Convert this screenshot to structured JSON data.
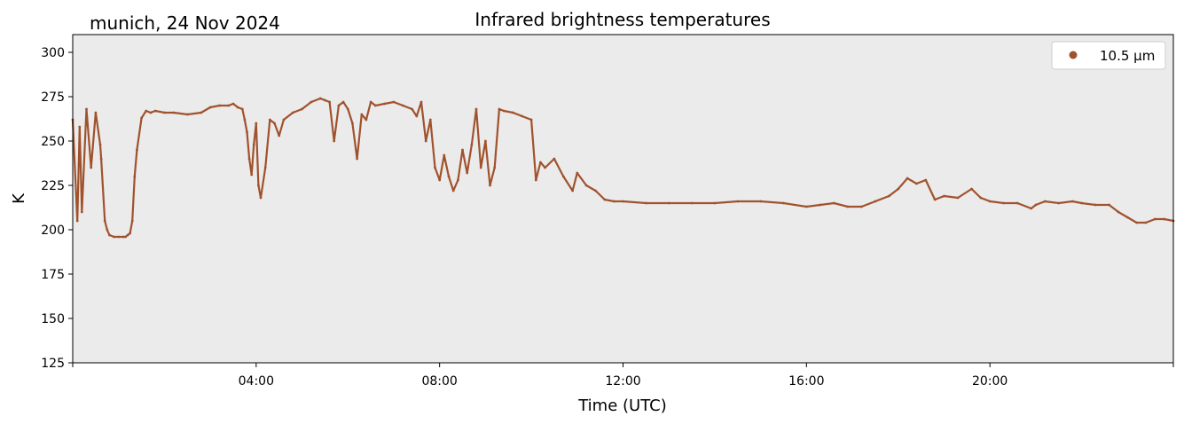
{
  "chart_data": {
    "type": "scatter",
    "title": "Infrared brightness temperatures",
    "subtitle": "munich, 24 Nov 2024",
    "xlabel": "Time (UTC)",
    "ylabel": "K",
    "xlim": [
      0,
      24
    ],
    "ylim": [
      125,
      310
    ],
    "x_ticks": [
      {
        "value": 4,
        "label": "04:00"
      },
      {
        "value": 8,
        "label": "08:00"
      },
      {
        "value": 12,
        "label": "12:00"
      },
      {
        "value": 16,
        "label": "16:00"
      },
      {
        "value": 20,
        "label": "20:00"
      }
    ],
    "y_ticks": [
      125,
      150,
      175,
      200,
      225,
      250,
      275,
      300
    ],
    "grid": false,
    "background_color": "#ebebeb",
    "legend_position": "top-right",
    "series": [
      {
        "name": "10.5 µm",
        "color": "#a0522d",
        "x_hours": [
          0.0,
          0.1,
          0.15,
          0.2,
          0.3,
          0.4,
          0.5,
          0.6,
          0.62,
          0.7,
          0.75,
          0.8,
          0.9,
          1.0,
          1.1,
          1.15,
          1.2,
          1.25,
          1.3,
          1.35,
          1.4,
          1.5,
          1.6,
          1.7,
          1.8,
          2.0,
          2.2,
          2.5,
          2.8,
          3.0,
          3.2,
          3.4,
          3.5,
          3.6,
          3.7,
          3.75,
          3.8,
          3.85,
          3.9,
          3.95,
          4.0,
          4.05,
          4.1,
          4.2,
          4.3,
          4.4,
          4.5,
          4.6,
          4.8,
          5.0,
          5.2,
          5.4,
          5.5,
          5.6,
          5.7,
          5.8,
          5.9,
          6.0,
          6.1,
          6.2,
          6.3,
          6.4,
          6.5,
          6.6,
          6.8,
          7.0,
          7.2,
          7.4,
          7.5,
          7.6,
          7.7,
          7.8,
          7.9,
          8.0,
          8.1,
          8.2,
          8.3,
          8.4,
          8.5,
          8.6,
          8.7,
          8.8,
          8.9,
          9.0,
          9.1,
          9.2,
          9.3,
          9.4,
          9.6,
          9.8,
          10.0,
          10.1,
          10.2,
          10.3,
          10.5,
          10.7,
          10.9,
          11.0,
          11.2,
          11.4,
          11.6,
          11.8,
          12.0,
          12.5,
          13.0,
          13.5,
          14.0,
          14.5,
          15.0,
          15.5,
          16.0,
          16.3,
          16.6,
          16.9,
          17.2,
          17.5,
          17.8,
          18.0,
          18.2,
          18.4,
          18.6,
          18.8,
          19.0,
          19.3,
          19.6,
          19.8,
          20.0,
          20.3,
          20.6,
          20.9,
          21.0,
          21.2,
          21.5,
          21.8,
          22.0,
          22.3,
          22.6,
          22.8,
          23.0,
          23.2,
          23.4,
          23.6,
          23.8,
          24.0
        ],
        "values_K": [
          262,
          205,
          258,
          210,
          268,
          235,
          266,
          248,
          240,
          205,
          200,
          197,
          196,
          196,
          196,
          196,
          197,
          198,
          205,
          230,
          245,
          263,
          267,
          266,
          267,
          266,
          266,
          265,
          266,
          269,
          270,
          270,
          271,
          269,
          268,
          262,
          255,
          240,
          231,
          248,
          260,
          225,
          218,
          235,
          262,
          260,
          253,
          262,
          266,
          268,
          272,
          274,
          273,
          272,
          250,
          270,
          272,
          268,
          260,
          240,
          265,
          262,
          272,
          270,
          271,
          272,
          270,
          268,
          264,
          272,
          250,
          262,
          235,
          228,
          242,
          230,
          222,
          228,
          245,
          232,
          248,
          268,
          235,
          250,
          225,
          235,
          268,
          267,
          266,
          264,
          262,
          228,
          238,
          235,
          240,
          230,
          222,
          232,
          225,
          222,
          217,
          216,
          216,
          215,
          215,
          215,
          215,
          216,
          216,
          215,
          213,
          214,
          215,
          213,
          213,
          216,
          219,
          223,
          229,
          226,
          228,
          217,
          219,
          218,
          223,
          218,
          216,
          215,
          215,
          212,
          214,
          216,
          215,
          216,
          215,
          214,
          214,
          210,
          207,
          204,
          204,
          206,
          206,
          205
        ]
      }
    ]
  }
}
